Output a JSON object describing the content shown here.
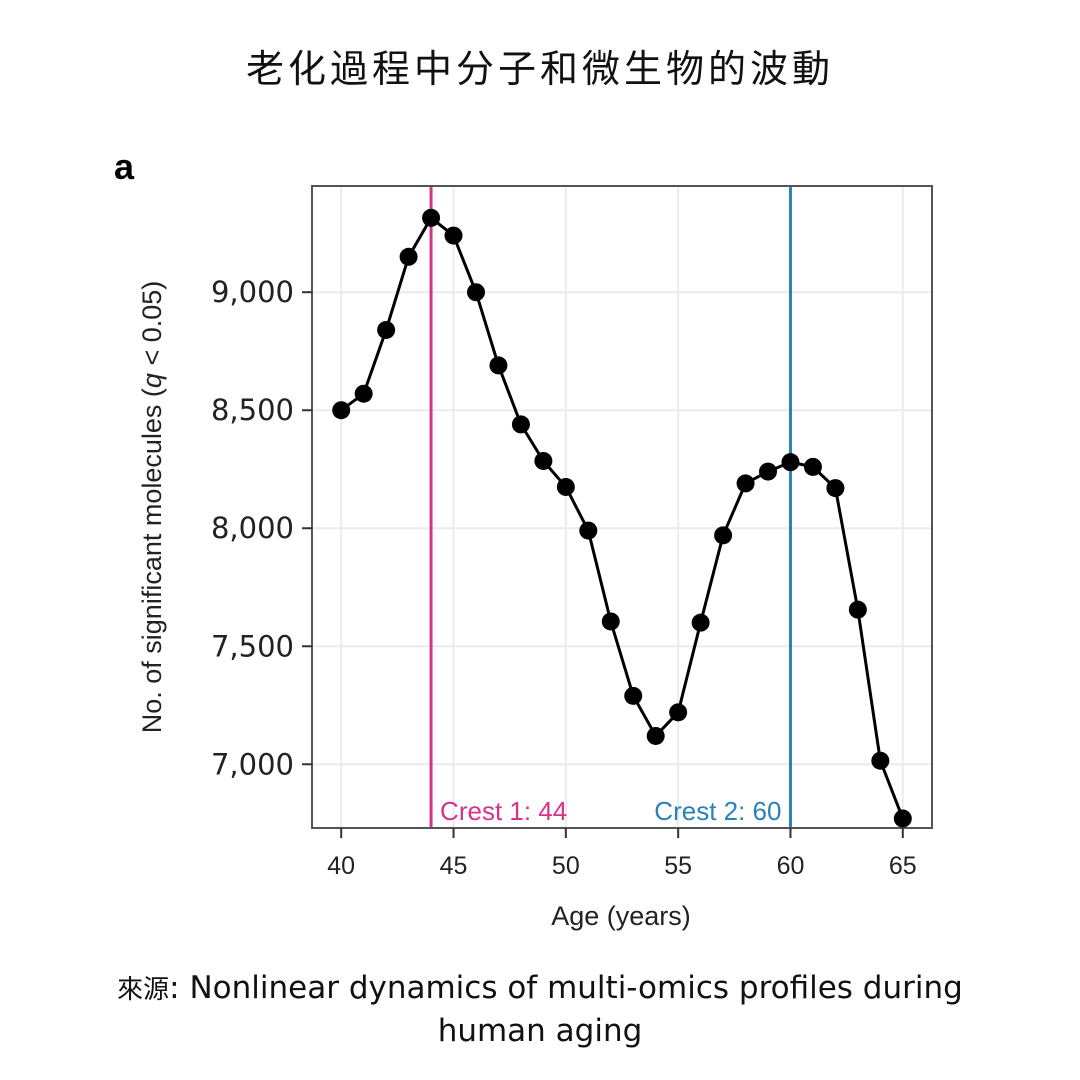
{
  "page": {
    "title": "老化過程中分子和微生物的波動",
    "panel_label": "a",
    "source_prefix": "來源",
    "source_text": ": Nonlinear dynamics of multi-omics profiles during human aging"
  },
  "colors": {
    "line": "#000000",
    "crest1": "#d6338a",
    "crest2": "#2a82b8",
    "grid": "#ebebeb",
    "frame": "#555555"
  },
  "chart_data": {
    "type": "line",
    "title": "",
    "xlabel": "Age (years)",
    "ylabel": "No. of significant molecules (q < 0.05)",
    "xlim": [
      38.7,
      66.3
    ],
    "ylim": [
      6730,
      9450
    ],
    "xticks": [
      40,
      45,
      50,
      55,
      60,
      65
    ],
    "xtick_labels": [
      "40",
      "45",
      "50",
      "55",
      "60",
      "65"
    ],
    "yticks": [
      7000,
      7500,
      8000,
      8500,
      9000
    ],
    "ytick_labels": [
      "7,000",
      "7,500",
      "8,000",
      "8,500",
      "9,000"
    ],
    "grid": true,
    "legend": null,
    "series": [
      {
        "name": "Significant molecules",
        "x": [
          40,
          41,
          42,
          43,
          44,
          45,
          46,
          47,
          48,
          49,
          50,
          51,
          52,
          53,
          54,
          55,
          56,
          57,
          58,
          59,
          60,
          61,
          62,
          63,
          64,
          65
        ],
        "values": [
          8500,
          8570,
          8840,
          9150,
          9315,
          9240,
          9000,
          8690,
          8440,
          8285,
          8175,
          7990,
          7605,
          7290,
          7120,
          7220,
          7600,
          7970,
          8190,
          8240,
          8280,
          8260,
          8170,
          7655,
          7015,
          6770
        ]
      }
    ],
    "annotations": [
      {
        "type": "vline",
        "x": 44,
        "label": "Crest 1: 44",
        "color": "#d6338a"
      },
      {
        "type": "vline",
        "x": 60,
        "label": "Crest 2: 60",
        "color": "#2a82b8"
      }
    ]
  }
}
